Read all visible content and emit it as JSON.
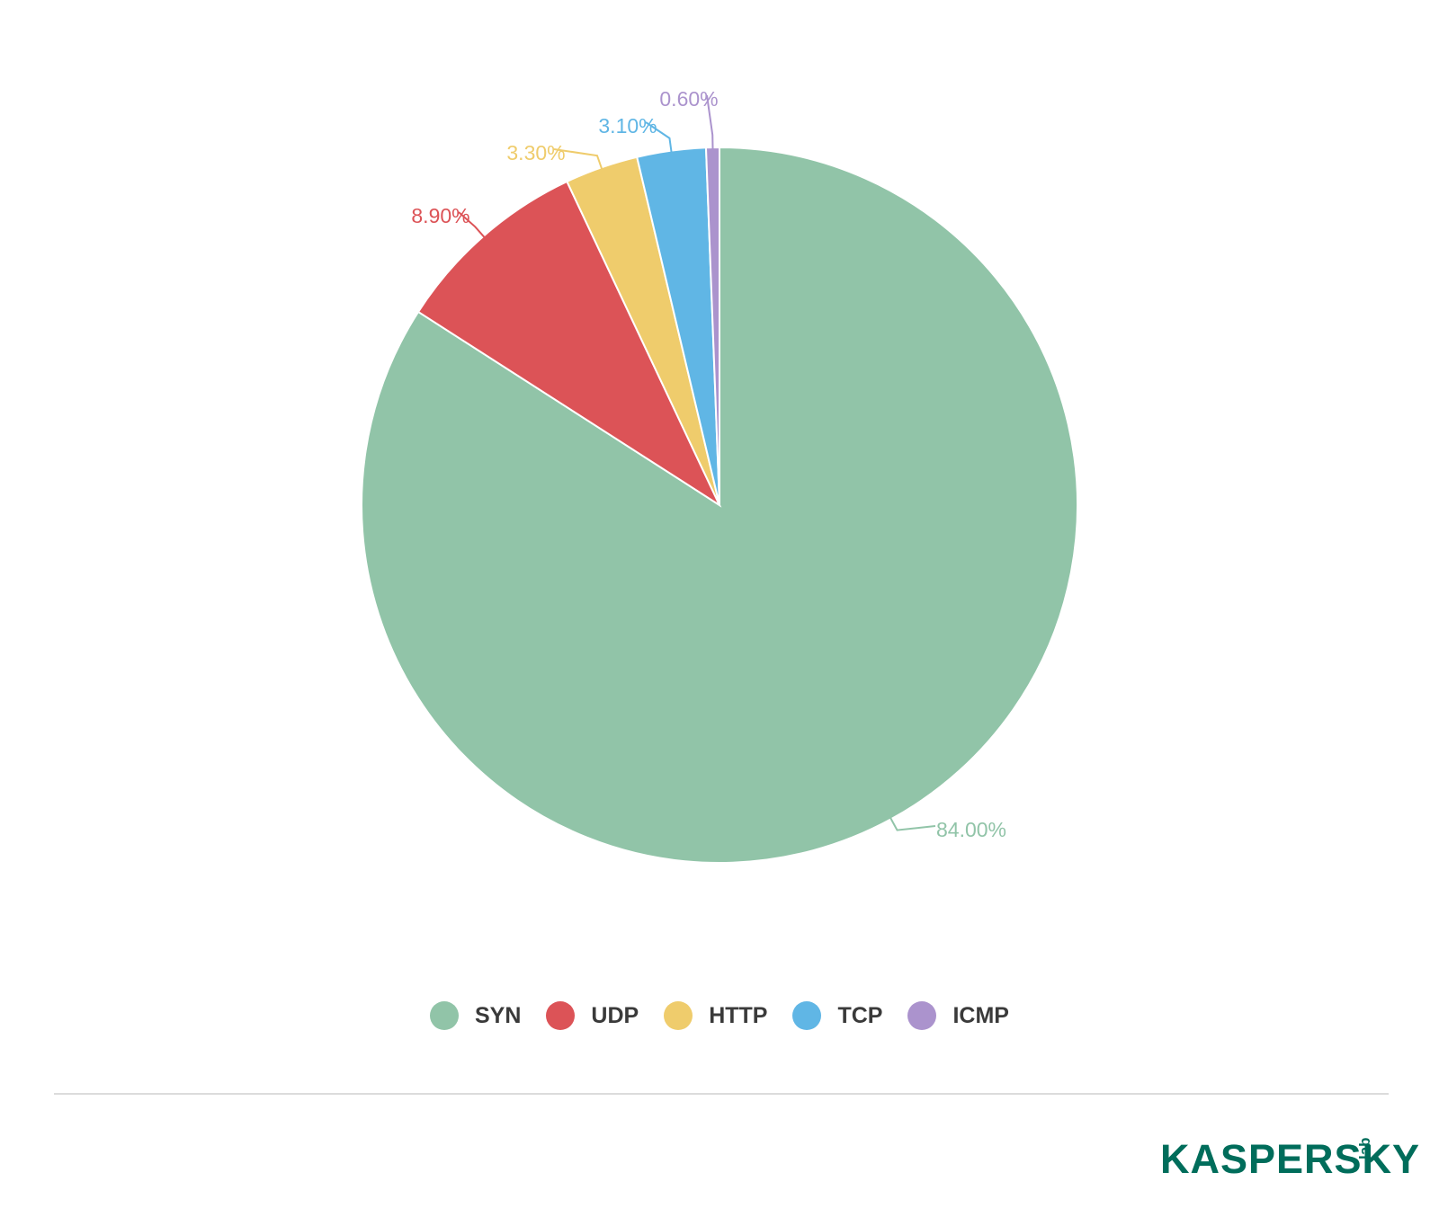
{
  "chart_data": {
    "type": "pie",
    "title": "",
    "start_angle_deg": 0,
    "direction": "clockwise",
    "slices": [
      {
        "name": "SYN",
        "value": 84.0,
        "label": "84.00%",
        "color": "#91c4a8"
      },
      {
        "name": "UDP",
        "value": 8.9,
        "label": "8.90%",
        "color": "#dc5357"
      },
      {
        "name": "HTTP",
        "value": 3.3,
        "label": "3.30%",
        "color": "#efcc6c"
      },
      {
        "name": "TCP",
        "value": 3.1,
        "label": "3.10%",
        "color": "#60b6e5"
      },
      {
        "name": "ICMP",
        "value": 0.6,
        "label": "0.60%",
        "color": "#ab93cd"
      }
    ],
    "legend": {
      "placement": "bottom-center"
    }
  },
  "logo": {
    "text": "KASPERSKY",
    "suffix": "lab",
    "color": "#006d5b"
  }
}
